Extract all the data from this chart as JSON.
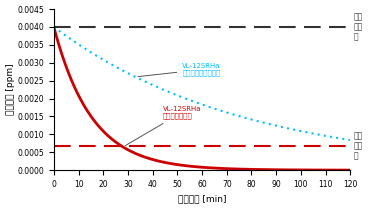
{
  "title": "",
  "xlabel": "経過時間 [min]",
  "ylabel": "ガス濃度 [ppm]",
  "xlim": [
    0,
    120
  ],
  "ylim": [
    0,
    0.0045
  ],
  "yticks": [
    0.0,
    0.0005,
    0.001,
    0.0015,
    0.002,
    0.0025,
    0.003,
    0.0035,
    0.004,
    0.0045
  ],
  "xticks": [
    0,
    10,
    20,
    30,
    40,
    50,
    60,
    70,
    80,
    90,
    100,
    110,
    120
  ],
  "hline_black": 0.004,
  "hline_red": 0.00068,
  "label_black_line_1": "臭気",
  "label_black_line_2": "強度",
  "label_black_line_3": "３",
  "label_red_line_1": "臭気",
  "label_red_line_2": "強度",
  "label_red_line_3": "２",
  "slow_mode_label_line1": "VL-12SRHa",
  "slow_mode_label_line2": "「ロスナイモード」",
  "fast_mode_label_line1": "VL-12SRHa",
  "fast_mode_label_line2": "「急速モード」",
  "slow_mode_color": "#00bfff",
  "fast_mode_color": "#cc0000",
  "black_line_color": "#333333",
  "red_dashed_color": "#cc0000",
  "initial_value": 0.004,
  "slow_decay_rate": 0.013,
  "fast_decay_rate": 0.065,
  "background_color": "#ffffff",
  "annotation_color": "#555555"
}
